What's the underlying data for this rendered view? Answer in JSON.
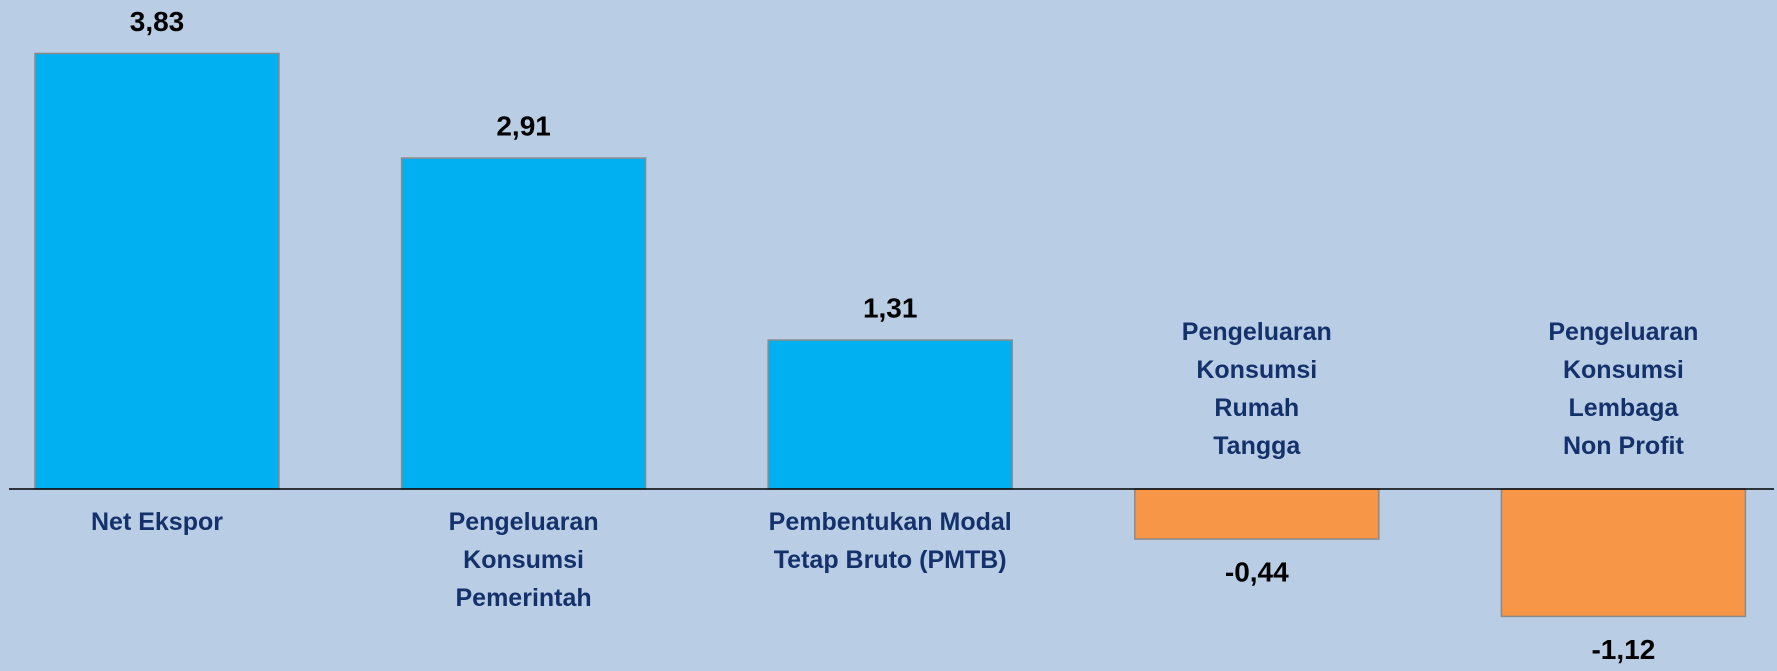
{
  "chart_data": {
    "type": "bar",
    "categories": [
      "Net Ekspor",
      "Pengeluaran\nKonsumsi\nPemerintah",
      "Pembentukan Modal\nTetap Bruto (PMTB)",
      "Pengeluaran\nKonsumsi\nRumah\nTangga",
      "Pengeluaran\nKonsumsi\nLembaga\nNon Profit"
    ],
    "values": [
      3.83,
      2.91,
      1.31,
      -0.44,
      -1.12
    ],
    "value_labels": [
      "3,83",
      "2,91",
      "1,31",
      "-0,44",
      "-1,12"
    ],
    "colors": [
      "#00b0f0",
      "#00b0f0",
      "#00b0f0",
      "#f79646",
      "#f79646"
    ],
    "ylim": [
      -1.6,
      4.3
    ]
  }
}
